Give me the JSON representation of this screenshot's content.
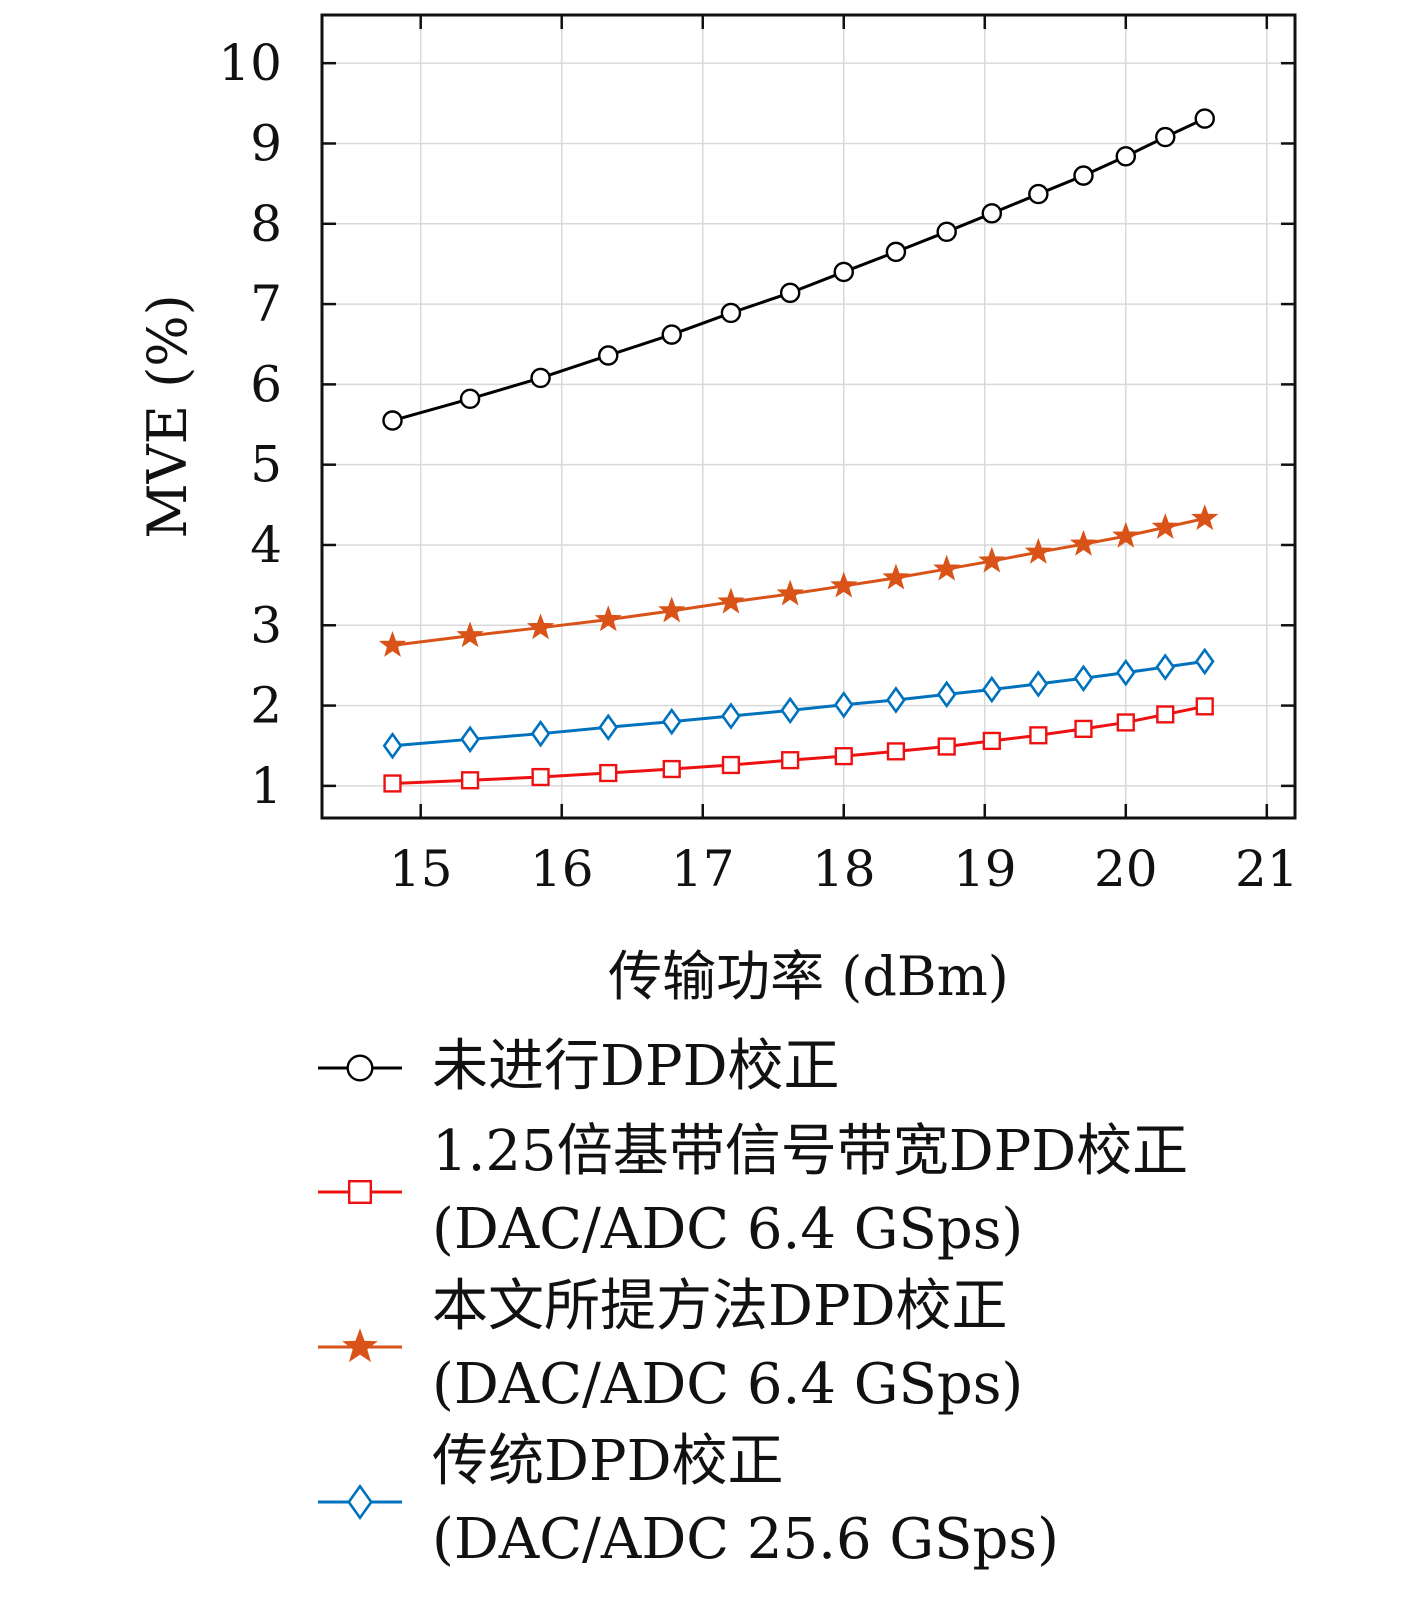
{
  "chart_data": {
    "type": "line",
    "title": "",
    "xlabel": "传输功率 (dBm)",
    "ylabel": "MVE (%)",
    "xlim": [
      14.3,
      21.2
    ],
    "ylim": [
      0.6,
      10.6
    ],
    "xticks": [
      15,
      16,
      17,
      18,
      19,
      20,
      21
    ],
    "yticks": [
      1,
      2,
      3,
      4,
      5,
      6,
      7,
      8,
      9,
      10
    ],
    "grid": true,
    "legend_position": "below",
    "x": [
      14.8,
      15.35,
      15.85,
      16.33,
      16.78,
      17.2,
      17.62,
      18.0,
      18.37,
      18.73,
      19.05,
      19.38,
      19.7,
      20.0,
      20.28,
      20.56
    ],
    "series": [
      {
        "name": "未进行DPD校正",
        "color": "#000000",
        "marker": "circle",
        "values": [
          5.55,
          5.82,
          6.08,
          6.36,
          6.62,
          6.89,
          7.14,
          7.4,
          7.65,
          7.9,
          8.13,
          8.37,
          8.6,
          8.84,
          9.08,
          9.31
        ]
      },
      {
        "name": "1.25倍基带信号带宽DPD校正",
        "name_line2": "(DAC/ADC 6.4 GSps)",
        "color": "#ee1111",
        "marker": "square",
        "values": [
          1.03,
          1.07,
          1.11,
          1.16,
          1.21,
          1.26,
          1.32,
          1.37,
          1.43,
          1.49,
          1.56,
          1.63,
          1.71,
          1.79,
          1.89,
          1.99
        ]
      },
      {
        "name": "本文所提方法DPD校正",
        "name_line2": "(DAC/ADC 6.4 GSps)",
        "color": "#d95319",
        "marker": "star",
        "values": [
          2.75,
          2.87,
          2.97,
          3.07,
          3.18,
          3.29,
          3.39,
          3.49,
          3.59,
          3.7,
          3.8,
          3.91,
          4.01,
          4.11,
          4.22,
          4.33
        ]
      },
      {
        "name": "传统DPD校正",
        "name_line2": "(DAC/ADC 25.6 GSps)",
        "color": "#0072bd",
        "marker": "diamond",
        "values": [
          1.5,
          1.58,
          1.65,
          1.73,
          1.8,
          1.87,
          1.94,
          2.01,
          2.07,
          2.14,
          2.2,
          2.27,
          2.34,
          2.41,
          2.48,
          2.55
        ]
      }
    ]
  }
}
